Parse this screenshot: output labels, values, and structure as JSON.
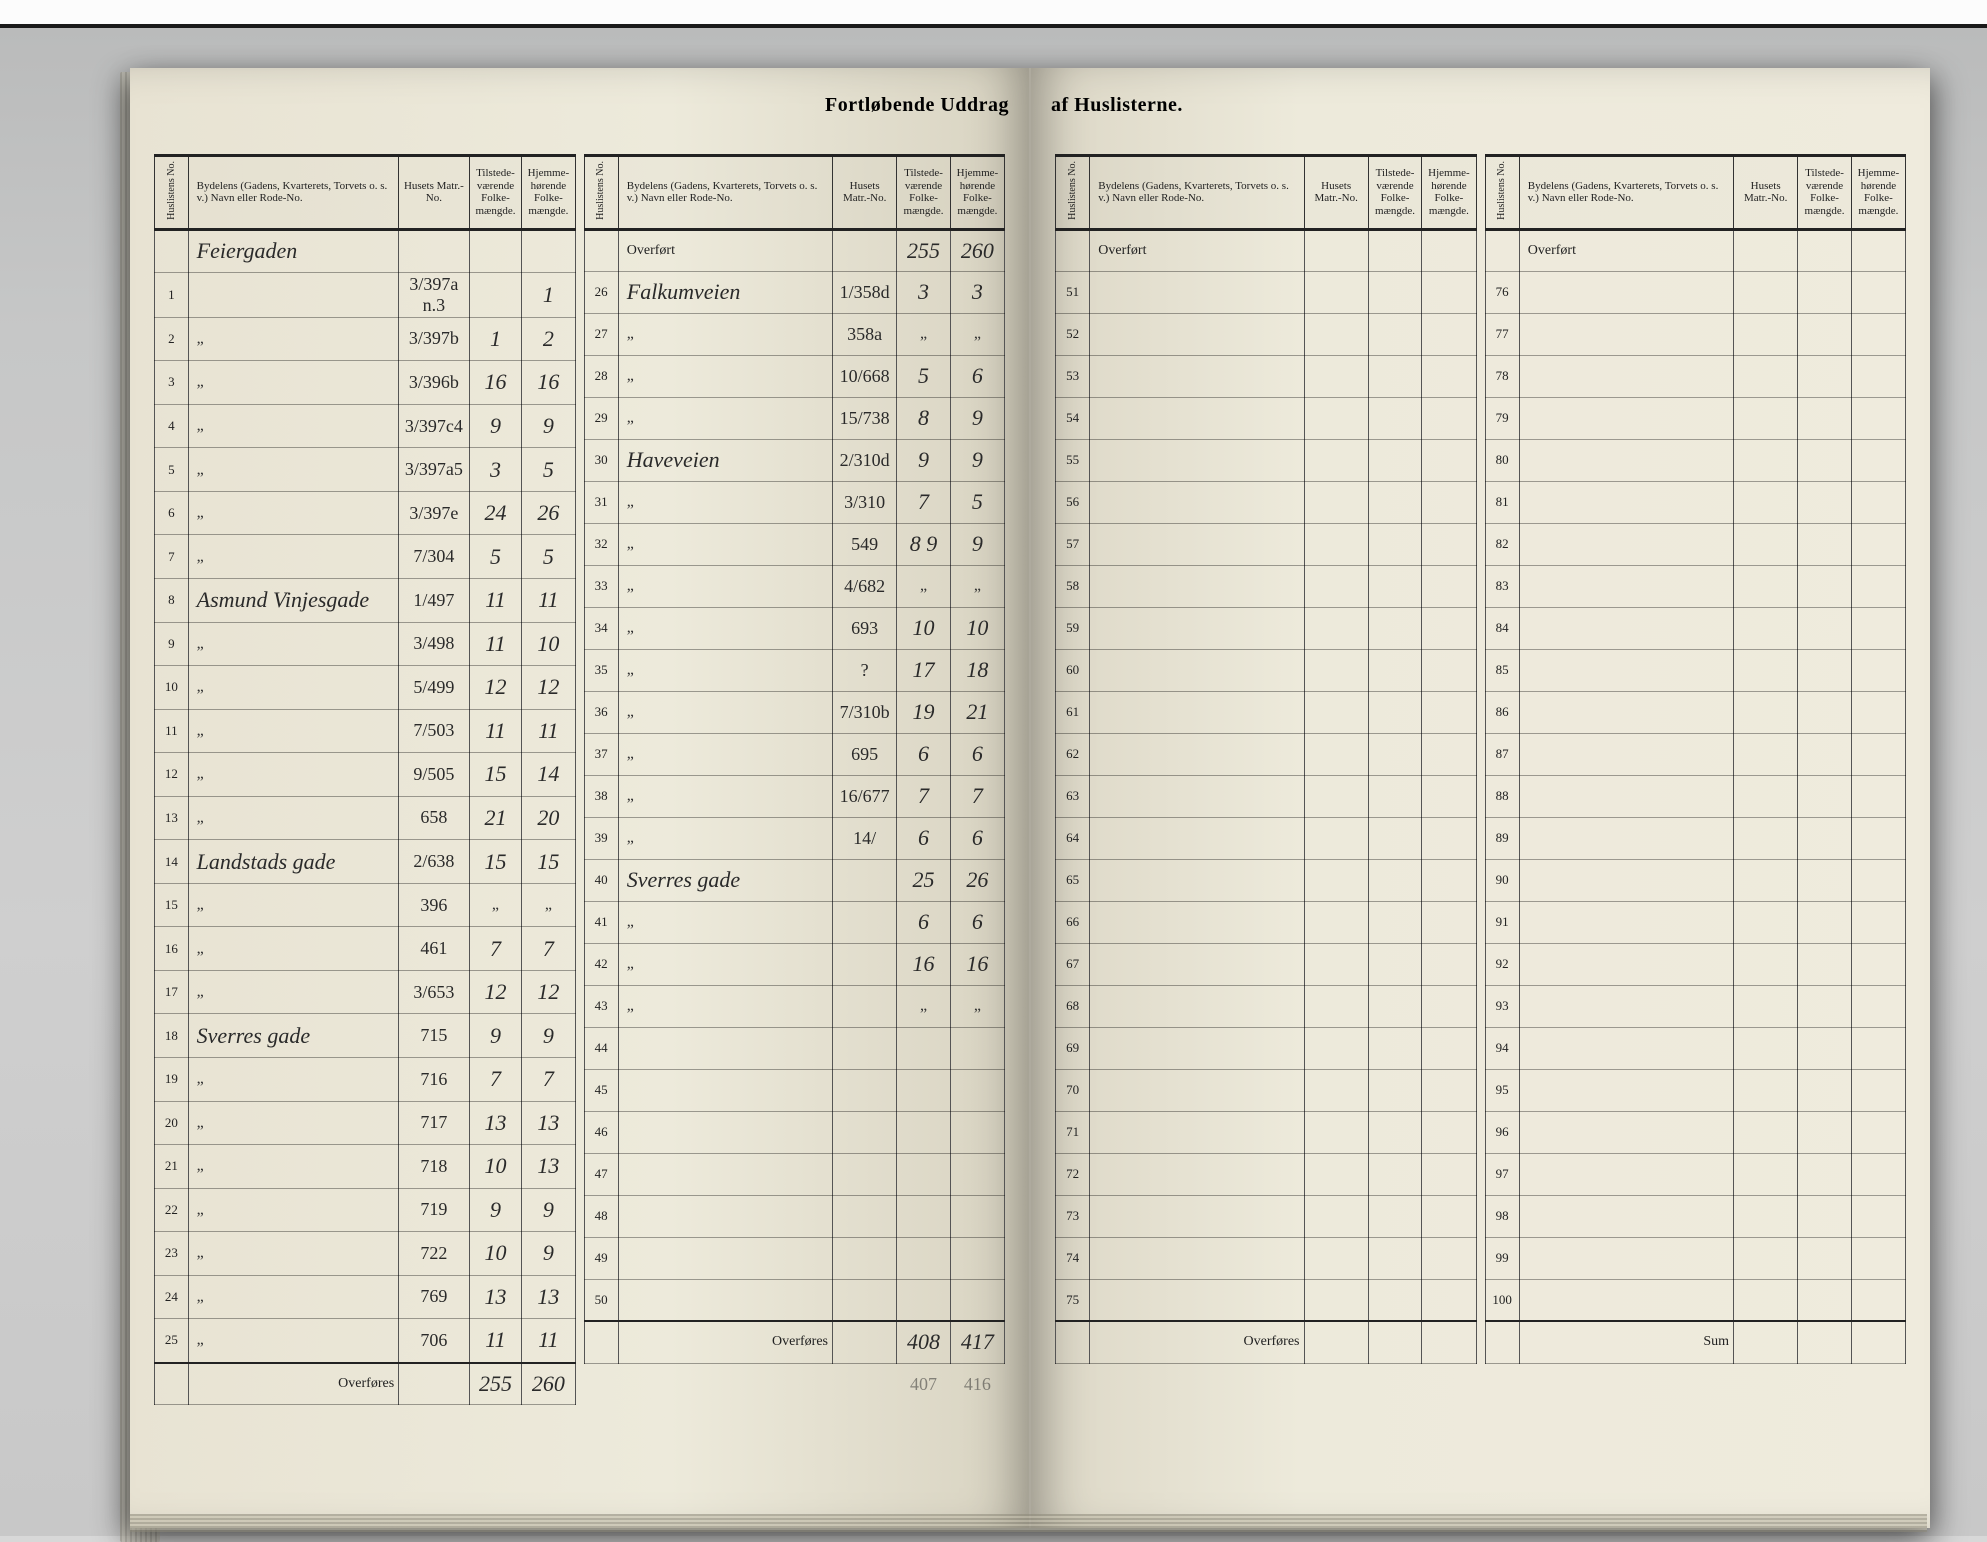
{
  "title_left": "Fortløbende Uddrag",
  "title_right": "af Huslisterne.",
  "headers": {
    "huslistens": "Huslistens No.",
    "bydel": "Bydelens (Gadens, Kvarterets, Torvets o. s. v.) Navn eller Rode-No.",
    "matr": "Husets Matr.-No.",
    "tilstede": "Tilstede-værende Folke-mængde.",
    "hjemme": "Hjemme-hørende Folke-mængde."
  },
  "overfort_label": "Overført",
  "overfores_label": "Overføres",
  "sum_label": "Sum",
  "left_block1": {
    "street_heading": "Feiergaden",
    "rows": [
      {
        "n": "1",
        "street": "",
        "matr": "3/397a n.3",
        "t": "",
        "h": "1"
      },
      {
        "n": "2",
        "street": "„",
        "matr": "3/397b",
        "t": "1",
        "h": "2"
      },
      {
        "n": "3",
        "street": "„",
        "matr": "3/396b",
        "t": "16",
        "h": "16"
      },
      {
        "n": "4",
        "street": "„",
        "matr": "3/397c4",
        "t": "9",
        "h": "9"
      },
      {
        "n": "5",
        "street": "„",
        "matr": "3/397a5",
        "t": "3",
        "h": "5"
      },
      {
        "n": "6",
        "street": "„",
        "matr": "3/397e",
        "t": "24",
        "h": "26"
      },
      {
        "n": "7",
        "street": "„",
        "matr": "7/304",
        "t": "5",
        "h": "5"
      },
      {
        "n": "8",
        "street": "Asmund Vinjesgade",
        "matr": "1/497",
        "t": "11",
        "h": "11"
      },
      {
        "n": "9",
        "street": "„",
        "matr": "3/498",
        "t": "11",
        "h": "10"
      },
      {
        "n": "10",
        "street": "„",
        "matr": "5/499",
        "t": "12",
        "h": "12"
      },
      {
        "n": "11",
        "street": "„",
        "matr": "7/503",
        "t": "11",
        "h": "11"
      },
      {
        "n": "12",
        "street": "„",
        "matr": "9/505",
        "t": "15",
        "h": "14"
      },
      {
        "n": "13",
        "street": "„",
        "matr": "658",
        "t": "21",
        "h": "20"
      },
      {
        "n": "14",
        "street": "Landstads gade",
        "matr": "2/638",
        "t": "15",
        "h": "15"
      },
      {
        "n": "15",
        "street": "„",
        "matr": "396",
        "t": "„",
        "h": "„"
      },
      {
        "n": "16",
        "street": "„",
        "matr": "461",
        "t": "7",
        "h": "7"
      },
      {
        "n": "17",
        "street": "„",
        "matr": "3/653",
        "t": "12",
        "h": "12"
      },
      {
        "n": "18",
        "street": "Sverres gade",
        "matr": "715",
        "t": "9",
        "h": "9"
      },
      {
        "n": "19",
        "street": "„",
        "matr": "716",
        "t": "7",
        "h": "7"
      },
      {
        "n": "20",
        "street": "„",
        "matr": "717",
        "t": "13",
        "h": "13"
      },
      {
        "n": "21",
        "street": "„",
        "matr": "718",
        "t": "10",
        "h": "13"
      },
      {
        "n": "22",
        "street": "„",
        "matr": "719",
        "t": "9",
        "h": "9"
      },
      {
        "n": "23",
        "street": "„",
        "matr": "722",
        "t": "10",
        "h": "9"
      },
      {
        "n": "24",
        "street": "„",
        "matr": "769",
        "t": "13",
        "h": "13"
      },
      {
        "n": "25",
        "street": "„",
        "matr": "706",
        "t": "11",
        "h": "11"
      }
    ],
    "carry_t": "255",
    "carry_h": "260"
  },
  "left_block2": {
    "overfort_t": "255",
    "overfort_h": "260",
    "rows": [
      {
        "n": "26",
        "street": "Falkumveien",
        "matr": "1/358d",
        "t": "3",
        "h": "3"
      },
      {
        "n": "27",
        "street": "„",
        "matr": "358a",
        "t": "„",
        "h": "„"
      },
      {
        "n": "28",
        "street": "„",
        "matr": "10/668",
        "t": "5",
        "h": "6"
      },
      {
        "n": "29",
        "street": "„",
        "matr": "15/738",
        "t": "8",
        "h": "9"
      },
      {
        "n": "30",
        "street": "Haveveien",
        "matr": "2/310d",
        "t": "9",
        "h": "9"
      },
      {
        "n": "31",
        "street": "„",
        "matr": "3/310",
        "t": "7",
        "h": "5"
      },
      {
        "n": "32",
        "street": "„",
        "matr": "549",
        "t": "8 9",
        "h": "9"
      },
      {
        "n": "33",
        "street": "„",
        "matr": "4/682",
        "t": "„",
        "h": "„"
      },
      {
        "n": "34",
        "street": "„",
        "matr": "693",
        "t": "10",
        "h": "10"
      },
      {
        "n": "35",
        "street": "„",
        "matr": "?",
        "t": "17",
        "h": "18"
      },
      {
        "n": "36",
        "street": "„",
        "matr": "7/310b",
        "t": "19",
        "h": "21"
      },
      {
        "n": "37",
        "street": "„",
        "matr": "695",
        "t": "6",
        "h": "6"
      },
      {
        "n": "38",
        "street": "„",
        "matr": "16/677",
        "t": "7",
        "h": "7"
      },
      {
        "n": "39",
        "street": "„",
        "matr": "14/",
        "t": "6",
        "h": "6"
      },
      {
        "n": "40",
        "street": "Sverres gade",
        "matr": "",
        "t": "25",
        "h": "26"
      },
      {
        "n": "41",
        "street": "„",
        "matr": "",
        "t": "6",
        "h": "6"
      },
      {
        "n": "42",
        "street": "„",
        "matr": "",
        "t": "16",
        "h": "16"
      },
      {
        "n": "43",
        "street": "„",
        "matr": "",
        "t": "„",
        "h": "„"
      },
      {
        "n": "44",
        "street": "",
        "matr": "",
        "t": "",
        "h": ""
      },
      {
        "n": "45",
        "street": "",
        "matr": "",
        "t": "",
        "h": ""
      },
      {
        "n": "46",
        "street": "",
        "matr": "",
        "t": "",
        "h": ""
      },
      {
        "n": "47",
        "street": "",
        "matr": "",
        "t": "",
        "h": ""
      },
      {
        "n": "48",
        "street": "",
        "matr": "",
        "t": "",
        "h": ""
      },
      {
        "n": "49",
        "street": "",
        "matr": "",
        "t": "",
        "h": ""
      },
      {
        "n": "50",
        "street": "",
        "matr": "",
        "t": "",
        "h": ""
      }
    ],
    "carry_t": "408",
    "carry_h": "417",
    "scratch_t": "407",
    "scratch_h": "416"
  },
  "right_block1": {
    "rows": [
      {
        "n": "51"
      },
      {
        "n": "52"
      },
      {
        "n": "53"
      },
      {
        "n": "54"
      },
      {
        "n": "55"
      },
      {
        "n": "56"
      },
      {
        "n": "57"
      },
      {
        "n": "58"
      },
      {
        "n": "59"
      },
      {
        "n": "60"
      },
      {
        "n": "61"
      },
      {
        "n": "62"
      },
      {
        "n": "63"
      },
      {
        "n": "64"
      },
      {
        "n": "65"
      },
      {
        "n": "66"
      },
      {
        "n": "67"
      },
      {
        "n": "68"
      },
      {
        "n": "69"
      },
      {
        "n": "70"
      },
      {
        "n": "71"
      },
      {
        "n": "72"
      },
      {
        "n": "73"
      },
      {
        "n": "74"
      },
      {
        "n": "75"
      }
    ]
  },
  "right_block2": {
    "rows": [
      {
        "n": "76"
      },
      {
        "n": "77"
      },
      {
        "n": "78"
      },
      {
        "n": "79"
      },
      {
        "n": "80"
      },
      {
        "n": "81"
      },
      {
        "n": "82"
      },
      {
        "n": "83"
      },
      {
        "n": "84"
      },
      {
        "n": "85"
      },
      {
        "n": "86"
      },
      {
        "n": "87"
      },
      {
        "n": "88"
      },
      {
        "n": "89"
      },
      {
        "n": "90"
      },
      {
        "n": "91"
      },
      {
        "n": "92"
      },
      {
        "n": "93"
      },
      {
        "n": "94"
      },
      {
        "n": "95"
      },
      {
        "n": "96"
      },
      {
        "n": "97"
      },
      {
        "n": "98"
      },
      {
        "n": "99"
      },
      {
        "n": "100"
      }
    ]
  }
}
